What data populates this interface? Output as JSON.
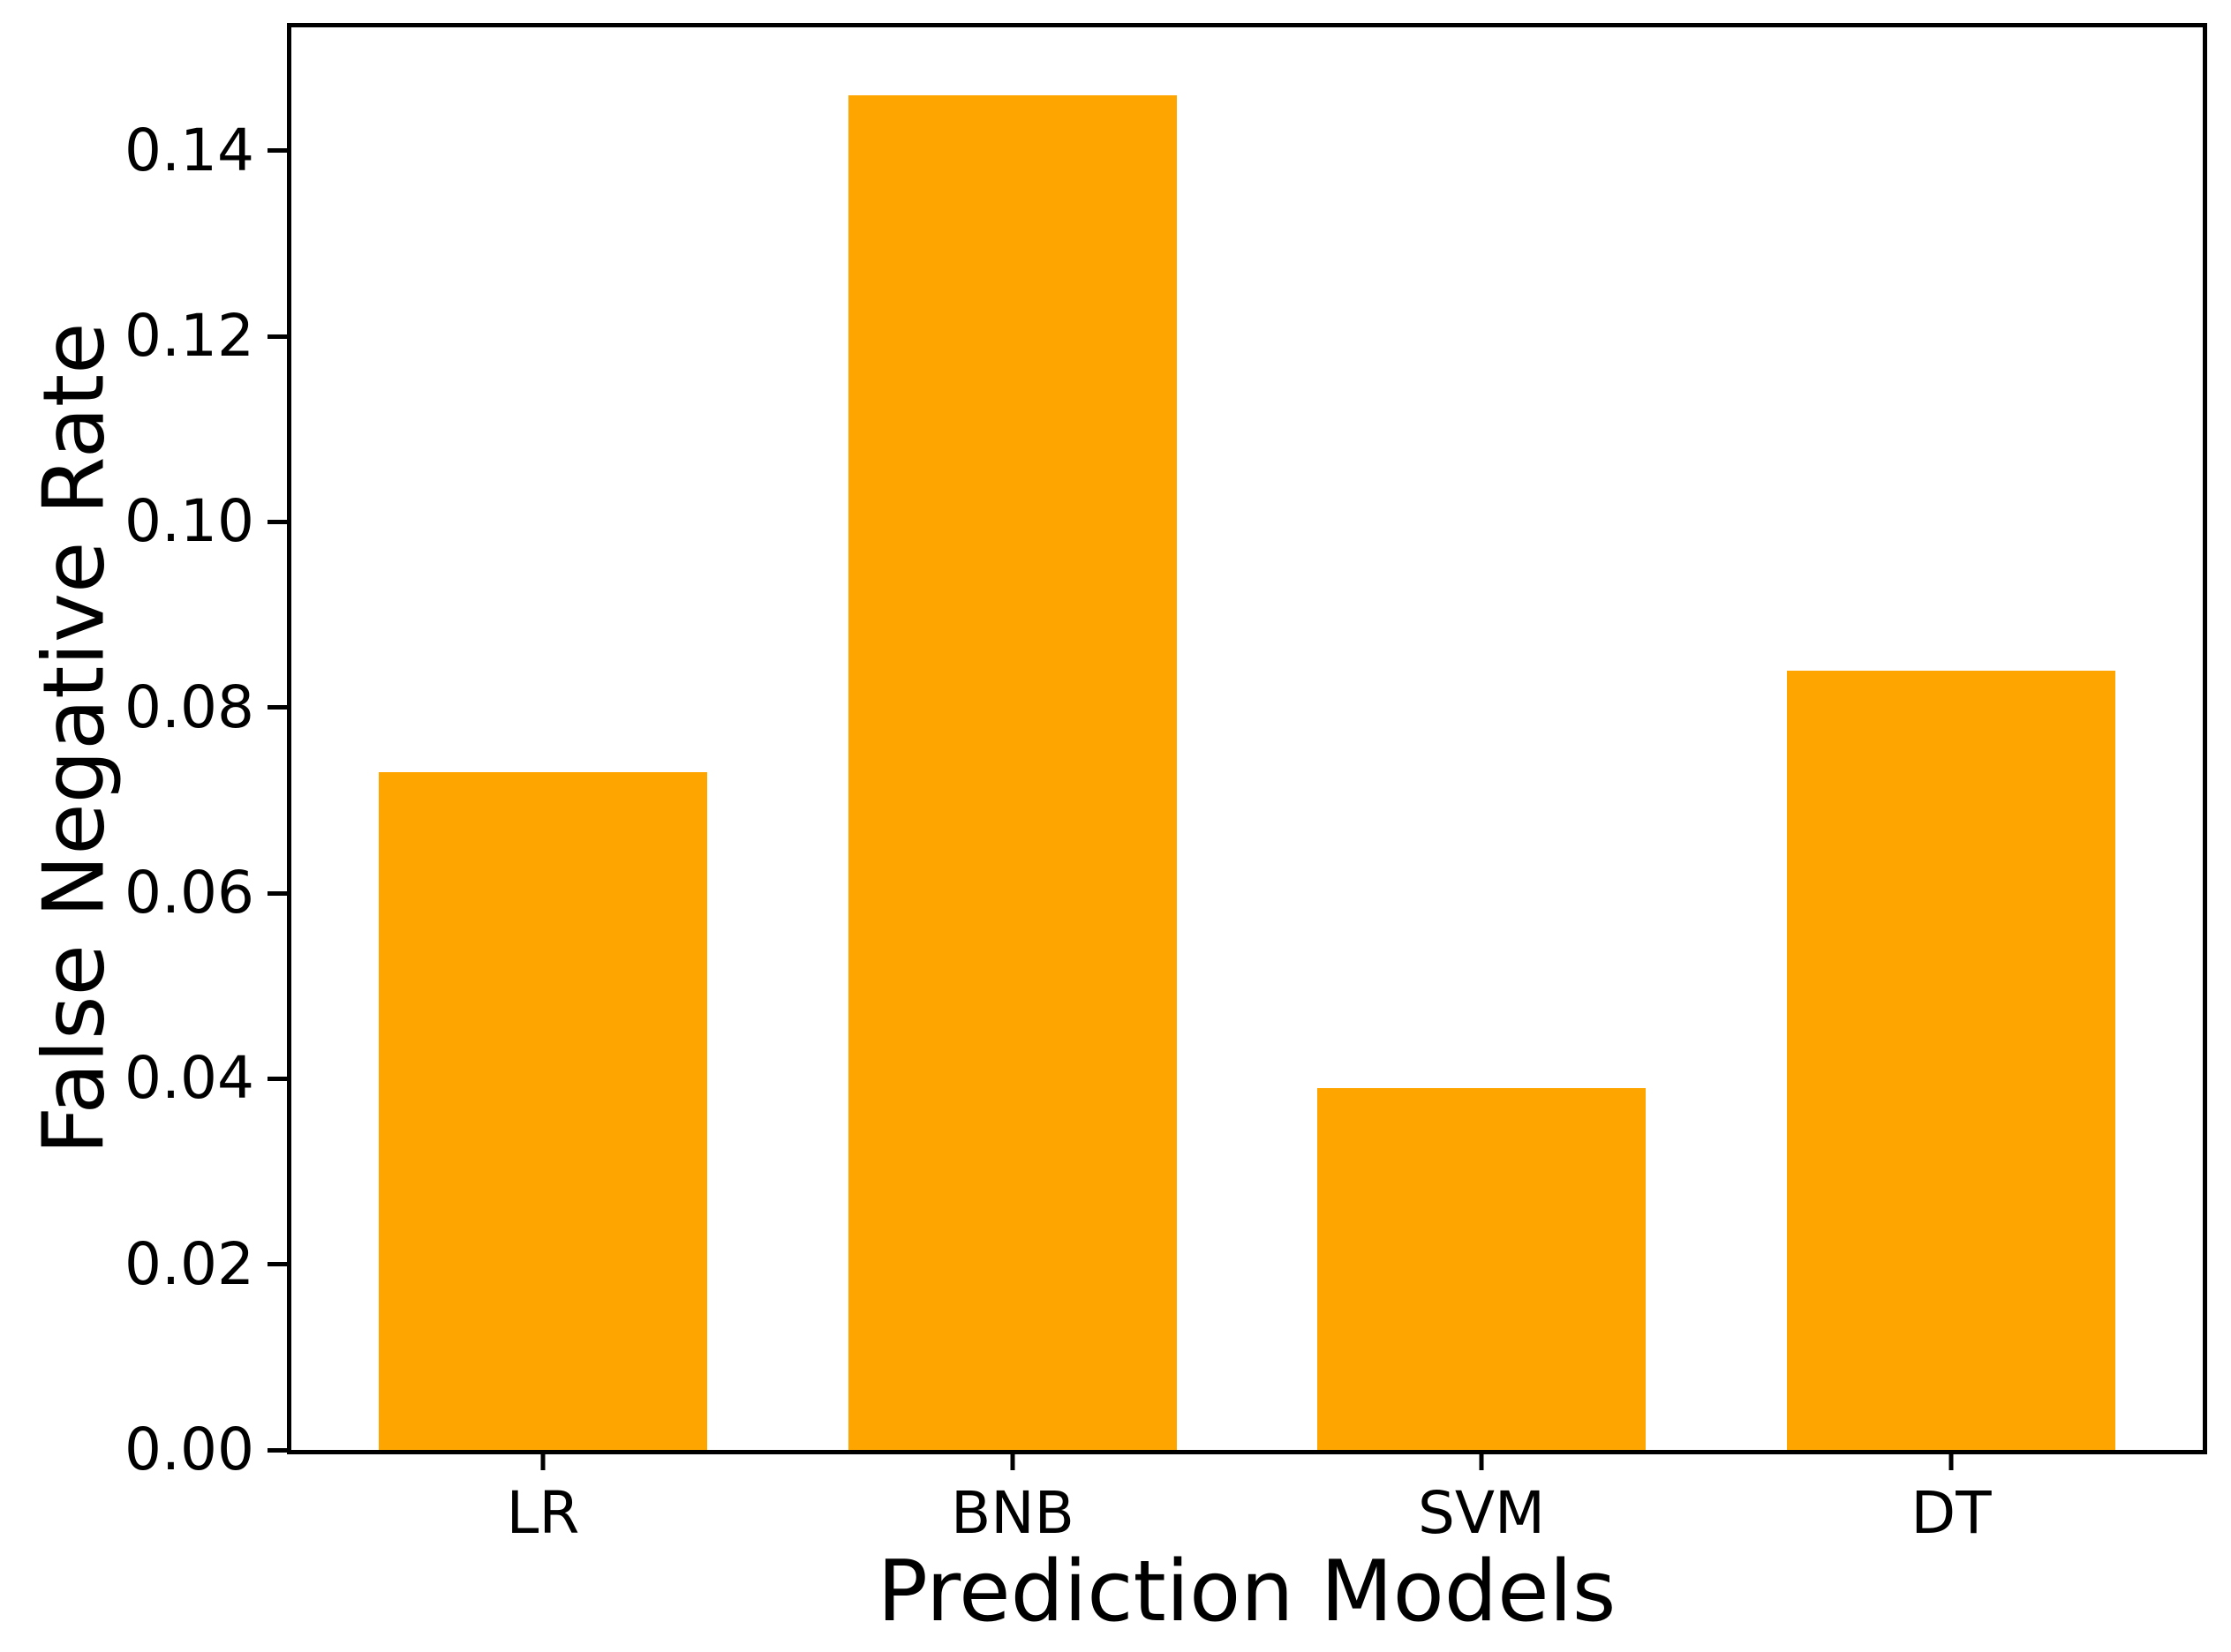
{
  "figure": {
    "background": "#ffffff",
    "axis_color": "#000000"
  },
  "chart_data": {
    "type": "bar",
    "xlabel": "Prediction Models",
    "ylabel": "False Negative Rate",
    "categories": [
      "LR",
      "BNB",
      "SVM",
      "DT"
    ],
    "values": [
      0.073,
      0.146,
      0.039,
      0.084
    ],
    "bar_color": "#ffa500",
    "ylim": [
      0,
      0.1533
    ],
    "yticks": [
      0.0,
      0.02,
      0.04,
      0.06,
      0.08,
      0.1,
      0.12,
      0.14
    ],
    "ytick_labels": [
      "0.00",
      "0.02",
      "0.04",
      "0.06",
      "0.08",
      "0.10",
      "0.12",
      "0.14"
    ],
    "grid": false,
    "legend": "none"
  }
}
